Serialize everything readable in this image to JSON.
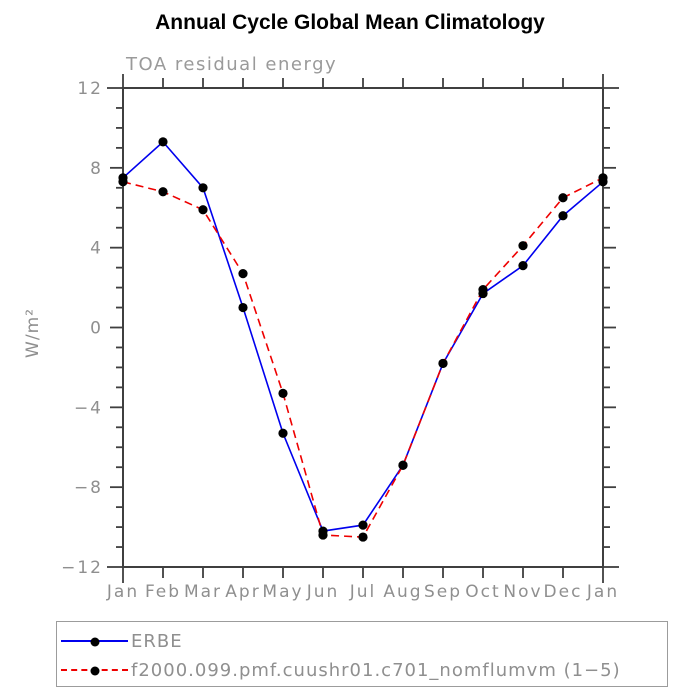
{
  "chart_data": {
    "type": "line",
    "title": "Annual Cycle Global Mean Climatology",
    "subtitle": "TOA residual energy",
    "xlabel": "",
    "ylabel": "W/m²",
    "categories": [
      "Jan",
      "Feb",
      "Mar",
      "Apr",
      "May",
      "Jun",
      "Jul",
      "Aug",
      "Sep",
      "Oct",
      "Nov",
      "Dec",
      "Jan"
    ],
    "series": [
      {
        "name": "ERBE",
        "color": "#0000ee",
        "line_style": "solid",
        "values": [
          7.5,
          9.3,
          7.0,
          1.0,
          -5.3,
          -10.2,
          -9.9,
          -6.9,
          -1.8,
          1.7,
          3.1,
          5.6,
          7.3
        ]
      },
      {
        "name": "f2000.099.pmf.cuushr01.c701_nomflumvm (1−5)",
        "color": "#ee0000",
        "line_style": "dashed",
        "values": [
          7.3,
          6.8,
          5.9,
          2.7,
          -3.3,
          -10.4,
          -10.5,
          -6.9,
          -1.8,
          1.9,
          4.1,
          6.5,
          7.5
        ]
      }
    ],
    "ylim": [
      -12,
      12
    ],
    "ytick_values": [
      12,
      8,
      4,
      0,
      -4,
      -8,
      -12
    ],
    "ytick_labels": [
      "12",
      "8",
      "4",
      "0",
      "−4",
      "−8",
      "−12"
    ],
    "ytick_minor_step": 1,
    "marker": "filled-circle",
    "marker_color": "#000000",
    "grid": "off",
    "legend_position": "bottom"
  },
  "colors": {
    "axis": "#3f3f3f",
    "tick_label": "#8f8f8f",
    "title_text": "#000000",
    "subtitle_text": "#9a9a9a",
    "legend_border": "#9c9c9c",
    "legend_text": "#8f8f8f",
    "background": "#ffffff"
  }
}
